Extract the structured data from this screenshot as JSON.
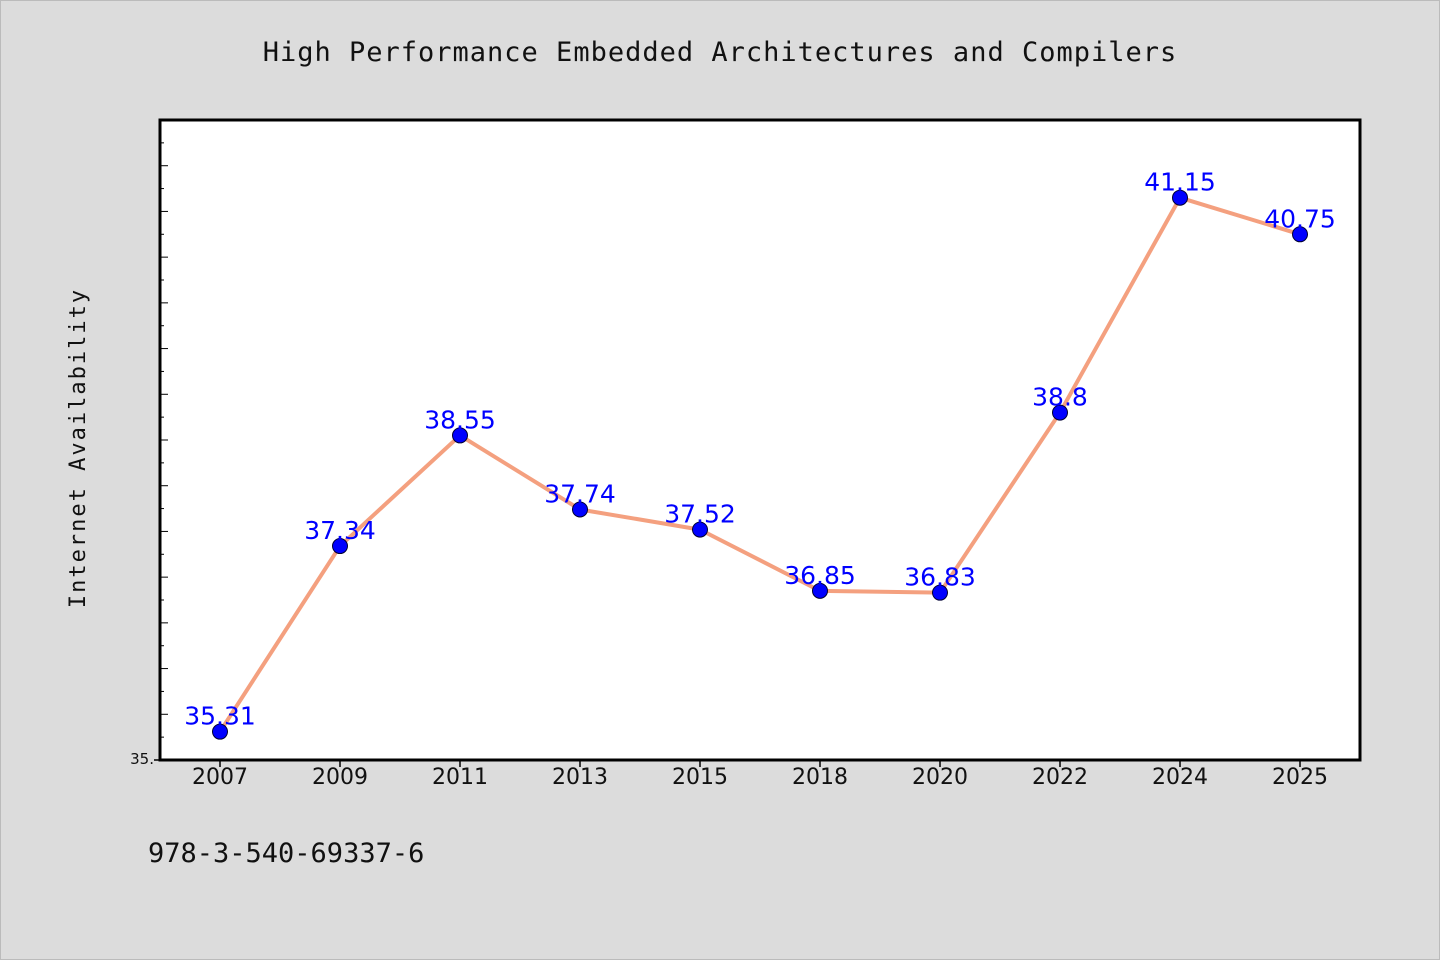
{
  "chart_data": {
    "type": "line",
    "title": "High Performance Embedded Architectures and Compilers",
    "xlabel": "",
    "ylabel": "Internet Availability",
    "categories": [
      "2007",
      "2009",
      "2011",
      "2013",
      "2015",
      "2018",
      "2020",
      "2022",
      "2024",
      "2025"
    ],
    "series": [
      {
        "values": [
          35.31,
          37.34,
          38.55,
          37.74,
          37.52,
          36.85,
          36.83,
          38.8,
          41.15,
          40.75
        ],
        "data_labels": [
          "35.31",
          "37.34",
          "38.55",
          "37.74",
          "37.52",
          "36.85",
          "36.83",
          "38.8",
          "41.15",
          "40.75"
        ]
      }
    ],
    "ylim": [
      35.0,
      42.0
    ],
    "yticklabels": [
      "35."
    ],
    "grid": false,
    "legend": "none"
  },
  "footnote": "978-3-540-69337-6",
  "colors": {
    "background": "#dcdcdc",
    "plot_area": "#ffffff",
    "line": "#f4a07f",
    "marker": "#0000ff",
    "data_label": "#0000ff"
  }
}
